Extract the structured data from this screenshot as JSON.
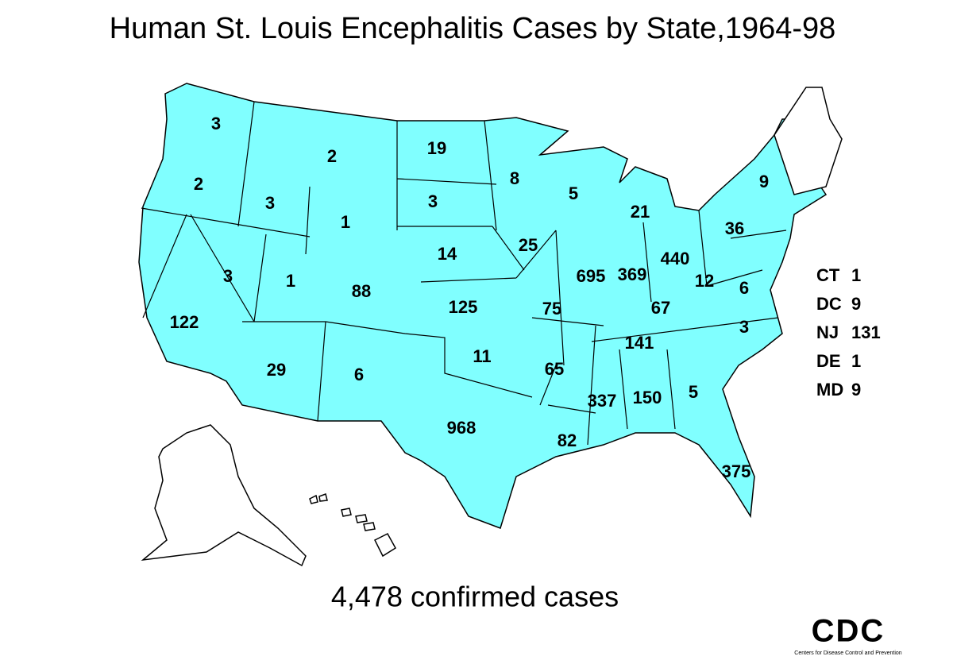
{
  "title": "Human St. Louis Encephalitis Cases by State,1964-98",
  "map_labels": [
    3,
    2,
    19,
    8,
    2,
    3,
    1,
    3,
    5,
    9,
    21,
    25,
    14,
    36,
    3,
    1,
    88,
    695,
    369,
    440,
    12,
    6,
    125,
    75,
    67,
    122,
    3,
    141,
    11,
    29,
    6,
    65,
    337,
    150,
    5,
    968,
    82,
    375
  ],
  "side_legend": [
    {
      "state": "CT",
      "cases": 1
    },
    {
      "state": "DC",
      "cases": 9
    },
    {
      "state": "NJ",
      "cases": 131
    },
    {
      "state": "DE",
      "cases": 1
    },
    {
      "state": "MD",
      "cases": 9
    }
  ],
  "footer": "4,478 confirmed cases",
  "logo": {
    "text": "CDC",
    "subtext": "Centers for Disease Control and Prevention"
  }
}
